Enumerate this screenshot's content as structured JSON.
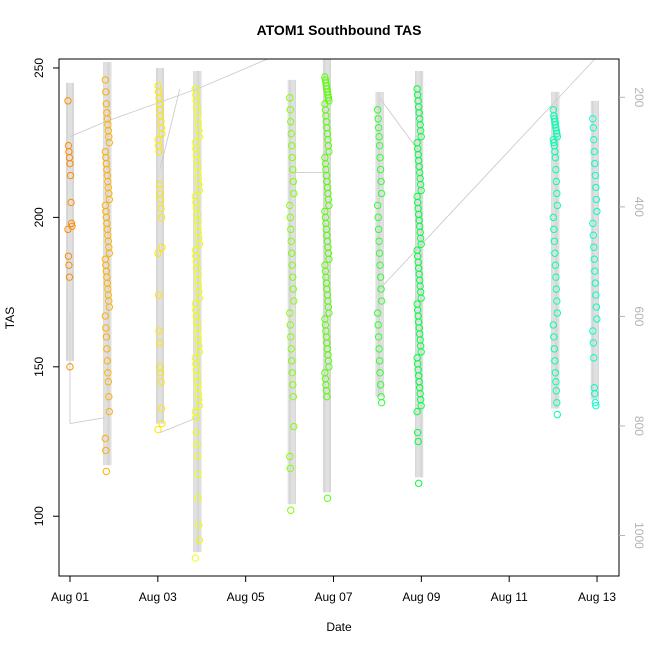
{
  "chart_data": {
    "type": "scatter",
    "title": "ATOM1 Southbound TAS",
    "xlabel": "Date",
    "ylabel": "TAS",
    "x_ticks": [
      "Aug 01",
      "Aug 03",
      "Aug 05",
      "Aug 07",
      "Aug 09",
      "Aug 11",
      "Aug 13"
    ],
    "x_tick_days": [
      1,
      3,
      5,
      7,
      9,
      11,
      13
    ],
    "xlim_days": [
      0.75,
      13.5
    ],
    "ylim": [
      80,
      253
    ],
    "y_ticks": [
      100,
      150,
      200,
      250
    ],
    "y2_ticks": [
      200,
      400,
      600,
      800,
      1000
    ],
    "y2lim": [
      1074,
      130
    ],
    "grid": false,
    "legend": "none",
    "colors": {
      "day1": "#ff8c00",
      "day2": "#ffb000",
      "day3": "#ffe600",
      "day4": "#eeff00",
      "day6": "#80ff00",
      "day7": "#55ff00",
      "day8": "#2eff30",
      "day9": "#00ff40",
      "day12": "#00ffb0",
      "day13": "#00ffc8",
      "pressure_line": "#cccccc"
    },
    "series": [
      {
        "day": 1.0,
        "color_key": "day1",
        "values": [
          239,
          224,
          222,
          220,
          218,
          214,
          205,
          198,
          197,
          196,
          187,
          184,
          180,
          150
        ]
      },
      {
        "day": 1.85,
        "color_key": "day2",
        "values": [
          246,
          242,
          238,
          235,
          233,
          231,
          229,
          227,
          225,
          222,
          220,
          218,
          216,
          214,
          212,
          210,
          208,
          206,
          204,
          202,
          200,
          198,
          196,
          194,
          192,
          190,
          188,
          186,
          184,
          182,
          180,
          178,
          176,
          174,
          172,
          170,
          167,
          163,
          160,
          156,
          152,
          148,
          145,
          140,
          135,
          126,
          122,
          115
        ]
      },
      {
        "day": 3.05,
        "color_key": "day3",
        "values": [
          244,
          242,
          240,
          238,
          236,
          234,
          232,
          230,
          228,
          226,
          224,
          222,
          211,
          208,
          206,
          203,
          200,
          190,
          188,
          174,
          162,
          158,
          150,
          148,
          145,
          136,
          131,
          129
        ]
      },
      {
        "day": 3.9,
        "color_key": "day4",
        "values": [
          243,
          241,
          239,
          237,
          235,
          233,
          231,
          229,
          227,
          225,
          223,
          221,
          219,
          217,
          215,
          213,
          211,
          209,
          207,
          205,
          203,
          201,
          199,
          197,
          195,
          193,
          191,
          189,
          187,
          185,
          183,
          181,
          179,
          177,
          175,
          173,
          171,
          169,
          167,
          165,
          163,
          161,
          159,
          157,
          155,
          153,
          151,
          149,
          147,
          145,
          143,
          141,
          139,
          137,
          135,
          133,
          128,
          124,
          120,
          114,
          106,
          97,
          92,
          86
        ]
      },
      {
        "day": 6.05,
        "color_key": "day6",
        "values": [
          240,
          236,
          232,
          228,
          224,
          220,
          216,
          212,
          208,
          204,
          200,
          196,
          192,
          188,
          184,
          180,
          176,
          172,
          168,
          164,
          160,
          156,
          152,
          148,
          144,
          140,
          130,
          120,
          116,
          102
        ]
      },
      {
        "day": 6.85,
        "color_key": "day7",
        "values": [
          247,
          246,
          245,
          244,
          243,
          242,
          241,
          240,
          239,
          238,
          236,
          234,
          232,
          230,
          228,
          226,
          224,
          222,
          220,
          218,
          216,
          214,
          212,
          210,
          208,
          206,
          204,
          202,
          200,
          198,
          196,
          194,
          192,
          190,
          188,
          186,
          184,
          182,
          180,
          178,
          176,
          174,
          172,
          170,
          168,
          166,
          164,
          162,
          160,
          158,
          156,
          154,
          152,
          150,
          148,
          146,
          144,
          142,
          140,
          106
        ]
      },
      {
        "day": 8.05,
        "color_key": "day8",
        "values": [
          236,
          233,
          230,
          227,
          224,
          220,
          216,
          212,
          208,
          204,
          200,
          196,
          192,
          188,
          184,
          180,
          176,
          172,
          168,
          164,
          160,
          156,
          152,
          148,
          144,
          140,
          138
        ]
      },
      {
        "day": 8.95,
        "color_key": "day9",
        "values": [
          243,
          241,
          239,
          237,
          235,
          233,
          231,
          229,
          227,
          225,
          223,
          221,
          219,
          217,
          215,
          213,
          211,
          209,
          207,
          205,
          203,
          201,
          199,
          197,
          195,
          193,
          191,
          189,
          187,
          185,
          183,
          181,
          179,
          177,
          175,
          173,
          171,
          169,
          167,
          165,
          163,
          161,
          159,
          157,
          155,
          153,
          151,
          149,
          147,
          145,
          143,
          141,
          139,
          137,
          135,
          128,
          125,
          111
        ]
      },
      {
        "day": 12.05,
        "color_key": "day12",
        "values": [
          236,
          234,
          233,
          232,
          231,
          230,
          229,
          228,
          227,
          226,
          225,
          224,
          222,
          220,
          216,
          212,
          208,
          204,
          200,
          196,
          192,
          188,
          184,
          180,
          176,
          172,
          168,
          164,
          160,
          156,
          152,
          148,
          145,
          142,
          138,
          134
        ]
      },
      {
        "day": 12.95,
        "color_key": "day13",
        "values": [
          233,
          230,
          226,
          222,
          218,
          214,
          210,
          206,
          202,
          198,
          194,
          190,
          186,
          182,
          178,
          174,
          170,
          166,
          162,
          158,
          153,
          143,
          141,
          138,
          137
        ]
      }
    ]
  }
}
